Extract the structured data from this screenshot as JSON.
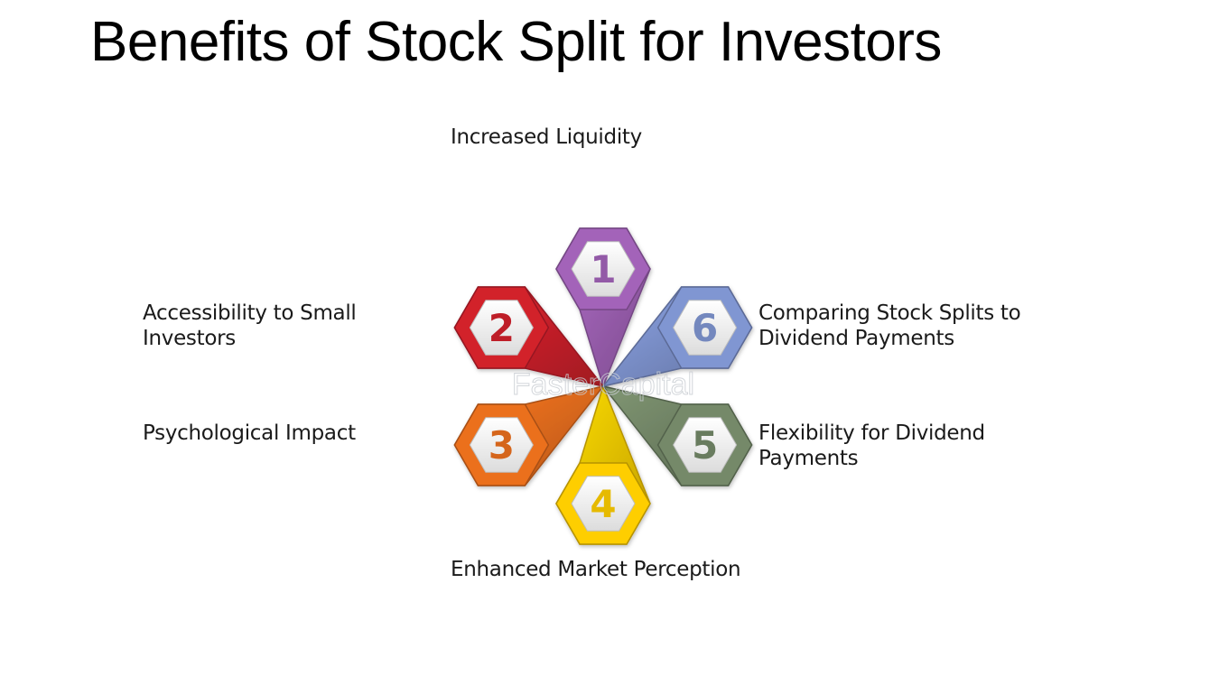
{
  "title": "Benefits of Stock Split for Investors",
  "items": [
    {
      "number": "1",
      "label": "Increased Liquidity",
      "color": "#9b5fb0"
    },
    {
      "number": "2",
      "label": "Accessibility to Small Investors",
      "color": "#c8202a"
    },
    {
      "number": "3",
      "label": "Psychological Impact",
      "color": "#e06a1c"
    },
    {
      "number": "4",
      "label": "Enhanced Market Perception",
      "color": "#f2c400"
    },
    {
      "number": "5",
      "label": "Flexibility for Dividend Payments",
      "color": "#6f8264"
    },
    {
      "number": "6",
      "label": "Comparing Stock Splits to Dividend Payments",
      "color": "#7a8fc8"
    }
  ],
  "watermark": "FasterCapital"
}
